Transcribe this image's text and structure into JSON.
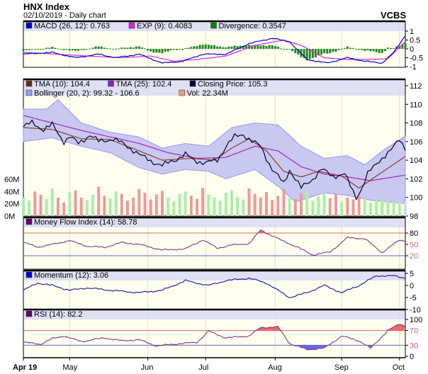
{
  "header": {
    "title": "HNX Index",
    "subtitle": "02/10/2019 - Daily chart",
    "brand": "VCBS"
  },
  "chart_data": [
    {
      "type": "line",
      "name": "macd",
      "legend": [
        "MACD (26, 12): 0.763",
        "EXP (9): 0.4083",
        "Divergence: 0.3547"
      ],
      "colors": [
        "#0000cc",
        "#dd22dd",
        "#008800"
      ],
      "ylim": [
        -1,
        1
      ],
      "yticks": [
        "1",
        "0.5",
        "0",
        "-0.5",
        "-1"
      ],
      "ytick_values": [
        1,
        0.5,
        0,
        -0.5,
        -1
      ],
      "macd": [
        [
          0,
          -0.3
        ],
        [
          10,
          -0.2
        ],
        [
          18,
          -0.5
        ],
        [
          26,
          -0.3
        ],
        [
          32,
          -0.5
        ],
        [
          40,
          -0.3
        ],
        [
          48,
          -0.8
        ],
        [
          55,
          -0.7
        ],
        [
          62,
          -0.3
        ],
        [
          70,
          -0.3
        ],
        [
          78,
          0.3
        ],
        [
          86,
          0.6
        ],
        [
          92,
          0.4
        ],
        [
          98,
          -0.6
        ],
        [
          105,
          -0.8
        ],
        [
          112,
          -0.5
        ],
        [
          118,
          -0.7
        ],
        [
          124,
          -0.8
        ],
        [
          128,
          -0.2
        ],
        [
          132,
          0.763
        ]
      ],
      "exp": [
        [
          0,
          -0.2
        ],
        [
          12,
          -0.3
        ],
        [
          22,
          -0.4
        ],
        [
          34,
          -0.5
        ],
        [
          44,
          -0.4
        ],
        [
          52,
          -0.7
        ],
        [
          60,
          -0.6
        ],
        [
          70,
          -0.4
        ],
        [
          80,
          0.2
        ],
        [
          90,
          0.5
        ],
        [
          96,
          0.2
        ],
        [
          104,
          -0.5
        ],
        [
          112,
          -0.6
        ],
        [
          120,
          -0.6
        ],
        [
          126,
          -0.55
        ],
        [
          132,
          0.4083
        ]
      ]
    },
    {
      "type": "line",
      "name": "price",
      "legend": [
        "TMA (10): 104.4",
        "TMA (25): 102.4",
        "Closing Price: 105.3",
        "Bollinger (20, 2): 99.32 - 106.6",
        "Vol: 22.34M"
      ],
      "colors": [
        "#663311",
        "#8822cc",
        "#000033",
        "#9999ee",
        "#ee9988"
      ],
      "ylim": [
        98,
        112
      ],
      "yticks": [
        "112",
        "110",
        "108",
        "106",
        "104",
        "102",
        "100",
        "98"
      ],
      "ytick_values": [
        112,
        110,
        108,
        106,
        104,
        102,
        100,
        98
      ],
      "vol_ticks": [
        "60M",
        "40M",
        "20M",
        "0M"
      ],
      "vol_tick_values": [
        60,
        40,
        20,
        0
      ],
      "close": [
        [
          0,
          107.6
        ],
        [
          3,
          108
        ],
        [
          7,
          107.3
        ],
        [
          10,
          107.8
        ],
        [
          14,
          106
        ],
        [
          16,
          106.5
        ],
        [
          19,
          105.8
        ],
        [
          23,
          106.7
        ],
        [
          26,
          106
        ],
        [
          31,
          106.3
        ],
        [
          36,
          105.5
        ],
        [
          41,
          104.4
        ],
        [
          45,
          103.8
        ],
        [
          48,
          103.4
        ],
        [
          52,
          104
        ],
        [
          56,
          104.6
        ],
        [
          59,
          104
        ],
        [
          63,
          103.7
        ],
        [
          67,
          104
        ],
        [
          70,
          105.5
        ],
        [
          73,
          106.5
        ],
        [
          76,
          106.8
        ],
        [
          79,
          106
        ],
        [
          82,
          105.5
        ],
        [
          86,
          103
        ],
        [
          90,
          101.5
        ],
        [
          92,
          103
        ],
        [
          96,
          101
        ],
        [
          100,
          102
        ],
        [
          103,
          103
        ],
        [
          107,
          102.3
        ],
        [
          111,
          102.5
        ],
        [
          115,
          100
        ],
        [
          117,
          101
        ],
        [
          119,
          102.5
        ],
        [
          123,
          104
        ],
        [
          127,
          105
        ],
        [
          130,
          106.3
        ],
        [
          132,
          105.3
        ]
      ],
      "tma10": [
        [
          0,
          107.5
        ],
        [
          10,
          107.3
        ],
        [
          20,
          106.3
        ],
        [
          30,
          106.2
        ],
        [
          40,
          105
        ],
        [
          48,
          104
        ],
        [
          58,
          104.2
        ],
        [
          66,
          104
        ],
        [
          72,
          105.3
        ],
        [
          78,
          106.3
        ],
        [
          84,
          105
        ],
        [
          90,
          102.8
        ],
        [
          96,
          102.2
        ],
        [
          102,
          102.8
        ],
        [
          110,
          102.3
        ],
        [
          116,
          101
        ],
        [
          122,
          102.3
        ],
        [
          132,
          104.4
        ]
      ],
      "tma25": [
        [
          0,
          108.8
        ],
        [
          10,
          108
        ],
        [
          20,
          107.2
        ],
        [
          30,
          106.5
        ],
        [
          40,
          105.8
        ],
        [
          50,
          104.8
        ],
        [
          60,
          104.2
        ],
        [
          70,
          104.3
        ],
        [
          80,
          105.5
        ],
        [
          88,
          105
        ],
        [
          96,
          103.3
        ],
        [
          104,
          102.5
        ],
        [
          112,
          102.2
        ],
        [
          120,
          101.8
        ],
        [
          132,
          102.4
        ]
      ],
      "boll_upper": [
        [
          0,
          109.5
        ],
        [
          8,
          109.5
        ],
        [
          12,
          110.5
        ],
        [
          20,
          108
        ],
        [
          30,
          107
        ],
        [
          40,
          106.5
        ],
        [
          48,
          105.3
        ],
        [
          56,
          105.8
        ],
        [
          64,
          105.5
        ],
        [
          72,
          107.5
        ],
        [
          80,
          108
        ],
        [
          88,
          107.8
        ],
        [
          96,
          105.5
        ],
        [
          104,
          104.2
        ],
        [
          112,
          104.5
        ],
        [
          118,
          103.5
        ],
        [
          124,
          105
        ],
        [
          132,
          106.6
        ]
      ],
      "boll_lower": [
        [
          0,
          106
        ],
        [
          10,
          106.4
        ],
        [
          20,
          105.5
        ],
        [
          30,
          104.8
        ],
        [
          40,
          103.2
        ],
        [
          48,
          102.5
        ],
        [
          56,
          103
        ],
        [
          64,
          102.8
        ],
        [
          70,
          102
        ],
        [
          80,
          103
        ],
        [
          88,
          101.2
        ],
        [
          94,
          99.5
        ],
        [
          104,
          100.5
        ],
        [
          112,
          100.2
        ],
        [
          120,
          99.7
        ],
        [
          132,
          99.32
        ]
      ],
      "volume": [
        30,
        25,
        40,
        35,
        28,
        45,
        30,
        22,
        38,
        42,
        30,
        26,
        35,
        48,
        33,
        29,
        40,
        36,
        25,
        30,
        44,
        38,
        27,
        35,
        41,
        30,
        24,
        36,
        40,
        33,
        28,
        46,
        35,
        30,
        25,
        38,
        42,
        31,
        27,
        45,
        36,
        30,
        39,
        26,
        33,
        44,
        30,
        28,
        37,
        41,
        25,
        32,
        38,
        29,
        35,
        24,
        30,
        27,
        33,
        28,
        22,
        30,
        26,
        25,
        24,
        22,
        22.34
      ],
      "vol_ylim": [
        0,
        60
      ]
    },
    {
      "type": "line",
      "name": "mfi",
      "legend": [
        "Money Flow Index (14): 58.78"
      ],
      "colors": [
        "#660066"
      ],
      "ylim": [
        20,
        80
      ],
      "yticks": [
        "80",
        "50",
        "20"
      ],
      "ytick_values": [
        80,
        50,
        20
      ],
      "values": [
        [
          0,
          55
        ],
        [
          5,
          43
        ],
        [
          10,
          50
        ],
        [
          16,
          60
        ],
        [
          22,
          45
        ],
        [
          28,
          42
        ],
        [
          34,
          55
        ],
        [
          40,
          50
        ],
        [
          48,
          35
        ],
        [
          56,
          38
        ],
        [
          62,
          62
        ],
        [
          67,
          40
        ],
        [
          72,
          48
        ],
        [
          78,
          52
        ],
        [
          82,
          88
        ],
        [
          88,
          65
        ],
        [
          94,
          45
        ],
        [
          100,
          22
        ],
        [
          106,
          30
        ],
        [
          112,
          68
        ],
        [
          118,
          65
        ],
        [
          124,
          28
        ],
        [
          130,
          62
        ],
        [
          132,
          58.78
        ]
      ]
    },
    {
      "type": "line",
      "name": "momentum",
      "legend": [
        "Momentum (12): 3.06"
      ],
      "colors": [
        "#0000cc"
      ],
      "ylim": [
        -10,
        5
      ],
      "yticks": [
        "5",
        "0",
        "-5",
        "-10"
      ],
      "ytick_values": [
        5,
        0,
        -5,
        -10
      ],
      "values": [
        [
          0,
          -2
        ],
        [
          5,
          1
        ],
        [
          10,
          0
        ],
        [
          16,
          -2
        ],
        [
          22,
          -1
        ],
        [
          30,
          -2
        ],
        [
          40,
          -3
        ],
        [
          48,
          -2
        ],
        [
          56,
          2
        ],
        [
          64,
          0
        ],
        [
          70,
          2
        ],
        [
          78,
          3
        ],
        [
          84,
          1
        ],
        [
          92,
          -5
        ],
        [
          98,
          -3
        ],
        [
          104,
          0
        ],
        [
          110,
          -3
        ],
        [
          116,
          0
        ],
        [
          122,
          4
        ],
        [
          128,
          4
        ],
        [
          132,
          3.06
        ]
      ]
    },
    {
      "type": "line",
      "name": "rsi",
      "legend": [
        "RSI (14): 82.2"
      ],
      "colors": [
        "#660066"
      ],
      "ylim": [
        0,
        100
      ],
      "yticks": [
        "100",
        "70",
        "30",
        "0"
      ],
      "ytick_values": [
        100,
        70,
        30,
        0
      ],
      "values": [
        [
          0,
          38
        ],
        [
          6,
          33
        ],
        [
          10,
          48
        ],
        [
          14,
          55
        ],
        [
          20,
          40
        ],
        [
          28,
          50
        ],
        [
          34,
          42
        ],
        [
          40,
          45
        ],
        [
          46,
          28
        ],
        [
          52,
          33
        ],
        [
          60,
          38
        ],
        [
          64,
          68
        ],
        [
          70,
          50
        ],
        [
          78,
          55
        ],
        [
          82,
          78
        ],
        [
          88,
          80
        ],
        [
          92,
          35
        ],
        [
          98,
          18
        ],
        [
          104,
          22
        ],
        [
          110,
          55
        ],
        [
          116,
          42
        ],
        [
          120,
          22
        ],
        [
          126,
          70
        ],
        [
          130,
          88
        ],
        [
          132,
          82.2
        ]
      ]
    }
  ],
  "x_axis": {
    "labels": [
      "Apr 19",
      "May",
      "Jun",
      "Jul",
      "Aug",
      "Sep",
      "Oct"
    ],
    "days": [
      0,
      16,
      43,
      63,
      87,
      110,
      130
    ],
    "max_day": 132
  }
}
